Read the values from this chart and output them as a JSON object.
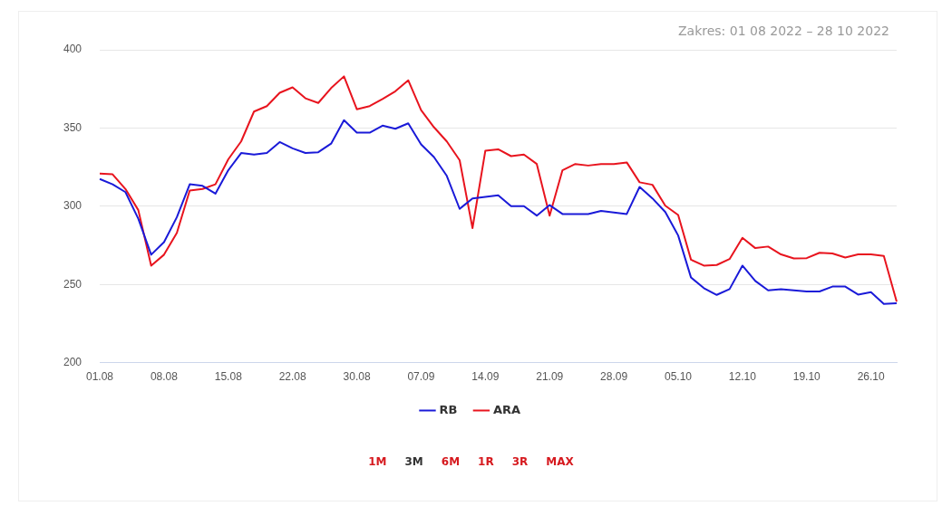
{
  "chart_data": {
    "type": "line",
    "categories": [
      "01.08",
      null,
      null,
      null,
      null,
      "08.08",
      null,
      null,
      null,
      null,
      "15.08",
      null,
      null,
      null,
      null,
      "22.08",
      null,
      null,
      null,
      null,
      "30.08",
      null,
      null,
      null,
      null,
      "07.09",
      null,
      null,
      null,
      null,
      "14.09",
      null,
      null,
      null,
      null,
      "21.09",
      null,
      null,
      null,
      null,
      "28.09",
      null,
      null,
      null,
      null,
      "05.10",
      null,
      null,
      null,
      null,
      "12.10",
      null,
      null,
      null,
      null,
      "19.10",
      null,
      null,
      null,
      null,
      "26.10",
      null,
      null
    ],
    "series": [
      {
        "name": "RB",
        "color": "#1a1ad8",
        "values": [
          317.4,
          314,
          309,
          292,
          269,
          277,
          293,
          314,
          313,
          308,
          323,
          334,
          333,
          334,
          341,
          337,
          334,
          334.5,
          340,
          355,
          347,
          347,
          351.5,
          349.5,
          353,
          339.5,
          331.4,
          319.4,
          298.3,
          305,
          306,
          307,
          300,
          300,
          294,
          300.7,
          295,
          295,
          295,
          297,
          296,
          295,
          312.3,
          305,
          296.3,
          281.3,
          254.4,
          247.6,
          243.3,
          247,
          262,
          252.2,
          246.2,
          247,
          246.2,
          245.5,
          245.5,
          248.6,
          248.6,
          243.5,
          245,
          237.5,
          238
        ]
      },
      {
        "name": "ARA",
        "color": "#e8141e",
        "values": [
          320.8,
          320.4,
          311,
          297.5,
          262,
          269,
          283,
          310,
          311,
          314,
          330,
          341.4,
          360.5,
          364,
          372.5,
          376,
          369,
          366,
          375.5,
          383,
          362,
          364,
          368.5,
          373.5,
          380.5,
          361.5,
          350.5,
          341.4,
          329.4,
          286,
          335.5,
          336.4,
          332,
          333,
          327,
          294,
          323,
          327,
          326,
          327,
          327,
          328,
          315.3,
          313.7,
          300.3,
          294.4,
          265.8,
          262,
          262.4,
          266.2,
          279.8,
          273.2,
          274.2,
          269.2,
          266.6,
          266.8,
          270.2,
          269.8,
          267.2,
          269.2,
          269.2,
          268.2,
          239
        ]
      }
    ],
    "ylim": [
      200,
      400
    ],
    "yticks": [
      200,
      250,
      300,
      350,
      400
    ],
    "grid": "y",
    "legend": "bottom",
    "marker": "none",
    "line_style": "solid",
    "annotations": [
      "Zakres: 01 08 2022 – 28 10 2022",
      "1M",
      "3M",
      "6M",
      "1R",
      "3R",
      "MAX"
    ]
  }
}
